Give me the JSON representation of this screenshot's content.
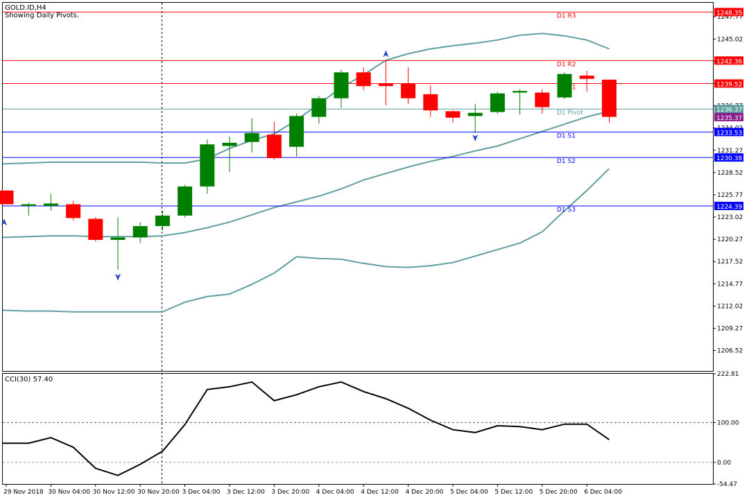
{
  "header": {
    "symbol": "GOLD.ID,H4",
    "subtitle": "Showing Daily Pivots."
  },
  "colors": {
    "bull": "#008000",
    "bear": "#ff0000",
    "bands": "#5f9ea0",
    "resistance": "#ff0000",
    "support": "#0000ff",
    "pivot": "#5f9ea0",
    "current_price_bg": "#8b1a8b",
    "cci_line": "#000000"
  },
  "chart_data": [
    {
      "type": "candlestick",
      "ylim": [
        1204.0,
        1249.5
      ],
      "y_ticks": [
        "1247.77",
        "1245.02",
        "1242.27",
        "1239.52",
        "1236.77",
        "1234.02",
        "1231.27",
        "1228.52",
        "1225.77",
        "1223.02",
        "1220.27",
        "1217.52",
        "1214.77",
        "1212.02",
        "1209.27",
        "1206.52"
      ],
      "x_tick_labels": [
        "29 Nov 2018",
        "30 Nov 04:00",
        "30 Nov 12:00",
        "30 Nov 20:00",
        "3 Dec 04:00",
        "3 Dec 12:00",
        "3 Dec 20:00",
        "4 Dec 04:00",
        "4 Dec 12:00",
        "4 Dec 20:00",
        "5 Dec 04:00",
        "5 Dec 12:00",
        "5 Dec 20:00",
        "6 Dec 04:00"
      ],
      "candles": [
        {
          "o": 1226.3,
          "h": 1226.3,
          "l": 1224.6,
          "c": 1224.6
        },
        {
          "o": 1224.4,
          "h": 1224.8,
          "l": 1223.2,
          "c": 1224.6
        },
        {
          "o": 1224.4,
          "h": 1225.9,
          "l": 1223.8,
          "c": 1224.7
        },
        {
          "o": 1224.6,
          "h": 1225.0,
          "l": 1222.6,
          "c": 1222.9
        },
        {
          "o": 1222.8,
          "h": 1223.0,
          "l": 1220.0,
          "c": 1220.2
        },
        {
          "o": 1220.2,
          "h": 1223.0,
          "l": 1216.5,
          "c": 1220.5
        },
        {
          "o": 1220.5,
          "h": 1222.4,
          "l": 1219.8,
          "c": 1221.9
        },
        {
          "o": 1221.9,
          "h": 1223.8,
          "l": 1221.4,
          "c": 1223.2
        },
        {
          "o": 1223.2,
          "h": 1227.0,
          "l": 1223.0,
          "c": 1226.8
        },
        {
          "o": 1226.8,
          "h": 1232.6,
          "l": 1225.9,
          "c": 1232.0
        },
        {
          "o": 1231.8,
          "h": 1233.0,
          "l": 1228.6,
          "c": 1232.2
        },
        {
          "o": 1232.3,
          "h": 1235.2,
          "l": 1231.0,
          "c": 1233.4
        },
        {
          "o": 1233.2,
          "h": 1234.8,
          "l": 1230.1,
          "c": 1230.3
        },
        {
          "o": 1231.7,
          "h": 1235.8,
          "l": 1230.5,
          "c": 1235.5
        },
        {
          "o": 1235.4,
          "h": 1238.0,
          "l": 1234.6,
          "c": 1237.7
        },
        {
          "o": 1237.7,
          "h": 1241.2,
          "l": 1236.5,
          "c": 1240.9
        },
        {
          "o": 1240.9,
          "h": 1241.5,
          "l": 1238.7,
          "c": 1239.2
        },
        {
          "o": 1239.5,
          "h": 1242.4,
          "l": 1236.8,
          "c": 1239.2
        },
        {
          "o": 1239.5,
          "h": 1241.5,
          "l": 1237.0,
          "c": 1237.7
        },
        {
          "o": 1238.2,
          "h": 1239.3,
          "l": 1235.4,
          "c": 1236.2
        },
        {
          "o": 1236.1,
          "h": 1236.2,
          "l": 1234.7,
          "c": 1235.3
        },
        {
          "o": 1235.5,
          "h": 1237.0,
          "l": 1233.4,
          "c": 1235.9
        },
        {
          "o": 1236.0,
          "h": 1238.5,
          "l": 1235.8,
          "c": 1238.3
        },
        {
          "o": 1238.4,
          "h": 1238.8,
          "l": 1235.7,
          "c": 1238.6
        },
        {
          "o": 1238.4,
          "h": 1238.8,
          "l": 1235.8,
          "c": 1236.6
        },
        {
          "o": 1237.8,
          "h": 1240.9,
          "l": 1237.6,
          "c": 1240.7
        },
        {
          "o": 1240.5,
          "h": 1241.1,
          "l": 1238.5,
          "c": 1240.1
        },
        {
          "o": 1240.0,
          "h": 1240.0,
          "l": 1234.7,
          "c": 1235.4
        }
      ],
      "bollinger_upper": [
        1229.6,
        1229.7,
        1229.8,
        1229.8,
        1229.8,
        1229.8,
        1229.8,
        1229.7,
        1229.7,
        1230.2,
        1231.5,
        1232.5,
        1233.3,
        1235.0,
        1237.0,
        1239.0,
        1240.6,
        1242.4,
        1243.2,
        1243.8,
        1244.2,
        1244.5,
        1244.9,
        1245.5,
        1245.7,
        1245.4,
        1244.9,
        1243.8
      ],
      "bollinger_middle": [
        1220.5,
        1220.6,
        1220.7,
        1220.7,
        1220.6,
        1220.6,
        1220.6,
        1220.7,
        1221.1,
        1221.7,
        1222.4,
        1223.3,
        1224.2,
        1224.9,
        1225.6,
        1226.5,
        1227.6,
        1228.4,
        1229.2,
        1229.9,
        1230.5,
        1231.2,
        1231.8,
        1232.7,
        1233.6,
        1234.5,
        1235.4,
        1236.1
      ],
      "bollinger_lower": [
        1211.5,
        1211.4,
        1211.4,
        1211.3,
        1211.3,
        1211.3,
        1211.3,
        1211.3,
        1212.5,
        1213.2,
        1213.5,
        1214.7,
        1216.1,
        1218.1,
        1217.9,
        1217.8,
        1217.3,
        1216.9,
        1216.8,
        1217.0,
        1217.4,
        1218.2,
        1219.0,
        1219.8,
        1221.2,
        1223.8,
        1226.3,
        1229.0
      ],
      "pivots": [
        {
          "label": "D1 R3",
          "value": "1248.35",
          "kind": "resistance"
        },
        {
          "label": "D1 R2",
          "value": "1242.36",
          "kind": "resistance"
        },
        {
          "label": "D1 R1",
          "value": "1239.52",
          "kind": "resistance"
        },
        {
          "label": "D1 Pivot",
          "value": "1236.37",
          "kind": "pivot"
        },
        {
          "label": "D1 S1",
          "value": "1233.53",
          "kind": "support"
        },
        {
          "label": "D1 S2",
          "value": "1230.38",
          "kind": "support"
        },
        {
          "label": "D1 S3",
          "value": "1224.39",
          "kind": "support"
        }
      ],
      "current_price": "1235.37",
      "fractals": [
        {
          "index": 0,
          "dir": "up",
          "price": 1222.4
        },
        {
          "index": 5,
          "dir": "down",
          "price": 1215.6
        },
        {
          "index": 17,
          "dir": "up",
          "price": 1243.2
        },
        {
          "index": 21,
          "dir": "down",
          "price": 1232.8
        }
      ]
    },
    {
      "type": "line",
      "title": "CCI(30) 57.40",
      "ylim": [
        -54.47,
        222.81
      ],
      "y_ticks": [
        "222.81",
        "100.00",
        "0.00",
        "-54.47"
      ],
      "levels": [
        100,
        0
      ],
      "values": [
        48,
        48,
        62,
        38,
        -15,
        -33,
        -5,
        28,
        95,
        183,
        190,
        202,
        155,
        170,
        190,
        202,
        178,
        160,
        136,
        106,
        82,
        75,
        92,
        90,
        82,
        96,
        96,
        57
      ]
    }
  ]
}
